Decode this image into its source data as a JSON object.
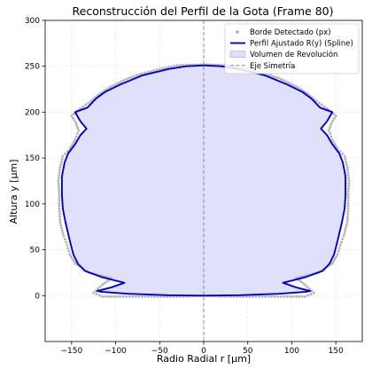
{
  "chart_data": {
    "type": "line",
    "title": "Reconstrucción del Perfil de la Gota (Frame 80)",
    "xlabel": "Radio Radial r [μm]",
    "ylabel": "Altura y [μm]",
    "xlim": [
      -180,
      180
    ],
    "ylim": [
      -50,
      300
    ],
    "xticks": [
      -150,
      -100,
      -50,
      0,
      50,
      100,
      150
    ],
    "yticks": [
      0,
      50,
      100,
      150,
      200,
      250,
      300
    ],
    "xtick_labels": [
      "−150",
      "−100",
      "−50",
      "0",
      "50",
      "100",
      "150"
    ],
    "ytick_labels": [
      "0",
      "50",
      "100",
      "150",
      "200",
      "250",
      "300"
    ],
    "grid": true,
    "legend_position": "top-right",
    "legend": [
      "Borde Detectado (px)",
      "Perfil Ajustado R(y) (Spline)",
      "Volumen de Revolución",
      "Eje Simetría"
    ],
    "colors": {
      "detected": "#a9a9a9",
      "fitted": "#0000cc",
      "fill": "#e0e0fa",
      "fill_edge": "#a6a6f0",
      "symmetry": "#808080"
    },
    "series": [
      {
        "name": "Perfil Ajustado R(y) (Spline)",
        "points": [
          [
            0,
            0
          ],
          [
            40,
            0.5
          ],
          [
            85,
            2
          ],
          [
            115,
            4
          ],
          [
            121,
            5
          ],
          [
            105,
            9
          ],
          [
            90,
            14
          ],
          [
            115,
            20
          ],
          [
            135,
            27
          ],
          [
            143,
            35
          ],
          [
            148,
            45
          ],
          [
            152,
            60
          ],
          [
            157,
            80
          ],
          [
            160,
            95
          ],
          [
            161,
            110
          ],
          [
            161,
            130
          ],
          [
            158,
            145
          ],
          [
            154,
            155
          ],
          [
            146,
            165
          ],
          [
            140,
            175
          ],
          [
            133,
            182
          ],
          [
            140,
            190
          ],
          [
            146,
            200
          ],
          [
            132,
            205
          ],
          [
            122,
            215
          ],
          [
            112,
            222
          ],
          [
            95,
            230
          ],
          [
            70,
            240
          ],
          [
            40,
            247
          ],
          [
            20,
            250
          ],
          [
            0,
            251
          ]
        ]
      },
      {
        "name": "Borde Detectado (px)",
        "points": [
          [
            0,
            0
          ],
          [
            20,
            -1
          ],
          [
            45,
            -1
          ],
          [
            70,
            -1
          ],
          [
            95,
            -1
          ],
          [
            115,
            -1
          ],
          [
            125,
            3
          ],
          [
            115,
            12
          ],
          [
            105,
            19
          ],
          [
            130,
            25
          ],
          [
            146,
            35
          ],
          [
            152,
            45
          ],
          [
            155,
            55
          ],
          [
            159,
            65
          ],
          [
            163,
            80
          ],
          [
            164,
            95
          ],
          [
            164,
            110
          ],
          [
            165,
            125
          ],
          [
            163,
            140
          ],
          [
            160,
            152
          ],
          [
            152,
            160
          ],
          [
            146,
            170
          ],
          [
            142,
            180
          ],
          [
            145,
            188
          ],
          [
            150,
            196
          ],
          [
            140,
            204
          ],
          [
            128,
            212
          ],
          [
            118,
            220
          ],
          [
            105,
            228
          ],
          [
            88,
            236
          ],
          [
            70,
            242
          ],
          [
            50,
            247
          ],
          [
            30,
            251
          ],
          [
            0,
            252
          ]
        ]
      }
    ]
  }
}
